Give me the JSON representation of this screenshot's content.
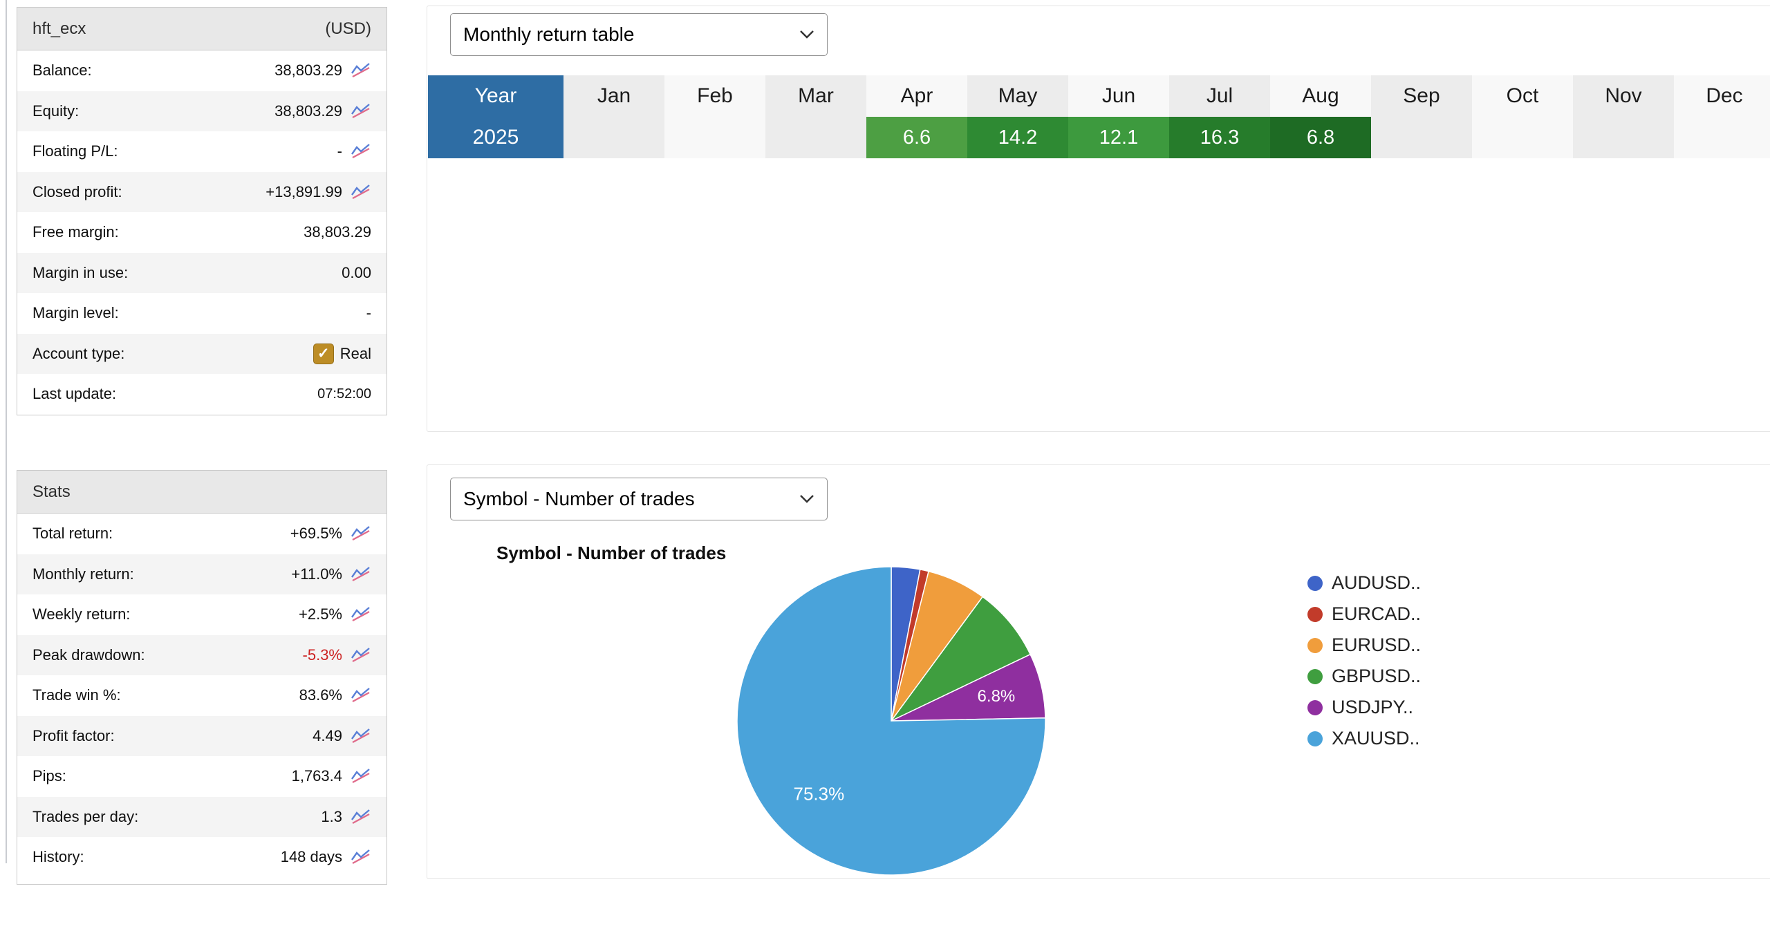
{
  "account_panel": {
    "title": "hft_ecx",
    "currency_label": "(USD)",
    "rows": [
      {
        "label": "Balance:",
        "value": "38,803.29",
        "icon": true
      },
      {
        "label": "Equity:",
        "value": "38,803.29",
        "icon": true
      },
      {
        "label": "Floating P/L:",
        "value": "-",
        "icon": true
      },
      {
        "label": "Closed profit:",
        "value": "+13,891.99",
        "icon": true
      },
      {
        "label": "Free margin:",
        "value": "38,803.29",
        "icon": false
      },
      {
        "label": "Margin in use:",
        "value": "0.00",
        "icon": false
      },
      {
        "label": "Margin level:",
        "value": "-",
        "icon": false
      },
      {
        "label": "Account type:",
        "value": "Real",
        "icon": false,
        "checkbox": true
      },
      {
        "label": "Last update:",
        "value": "07:52:00",
        "icon": false,
        "small": true
      }
    ]
  },
  "stats_panel": {
    "title": "Stats",
    "rows": [
      {
        "label": "Total return:",
        "value": "+69.5%",
        "icon": true
      },
      {
        "label": "Monthly return:",
        "value": "+11.0%",
        "icon": true
      },
      {
        "label": "Weekly return:",
        "value": "+2.5%",
        "icon": true
      },
      {
        "label": "Peak drawdown:",
        "value": "-5.3%",
        "icon": true,
        "color": "#cc2222"
      },
      {
        "label": "Trade win %:",
        "value": "83.6%",
        "icon": true
      },
      {
        "label": "Profit factor:",
        "value": "4.49",
        "icon": true
      },
      {
        "label": "Pips:",
        "value": "1,763.4",
        "icon": true
      },
      {
        "label": "Trades per day:",
        "value": "1.3",
        "icon": true
      },
      {
        "label": "History:",
        "value": "148 days",
        "icon": true
      }
    ]
  },
  "monthly_section": {
    "dropdown_value": "Monthly return table"
  },
  "symbol_section": {
    "dropdown_value": "Symbol - Number of trades",
    "chart_title": "Symbol - Number of trades"
  },
  "colors": {
    "table_header_blue": "#2e6da4",
    "drawdown_red": "#cc2222",
    "checkbox_gold": "#bd8d26"
  },
  "chart_data": [
    {
      "type": "table",
      "title": "Monthly return table",
      "columns": [
        "Year",
        "Jan",
        "Feb",
        "Mar",
        "Apr",
        "May",
        "Jun",
        "Jul",
        "Aug",
        "Sep",
        "Oct",
        "Nov",
        "Dec"
      ],
      "rows": [
        {
          "year": "2025",
          "values": [
            null,
            null,
            null,
            6.6,
            14.2,
            12.1,
            16.3,
            6.8,
            null,
            null,
            null,
            null
          ],
          "cell_colors": [
            null,
            null,
            null,
            "#4d9f43",
            "#2e8a33",
            "#3d9a3e",
            "#267c2b",
            "#1e6b24",
            null,
            null,
            null,
            null
          ]
        }
      ]
    },
    {
      "type": "pie",
      "title": "Symbol - Number of trades",
      "legend_position": "right",
      "slices": [
        {
          "label": "AUDUSD..",
          "value": 3.0,
          "color": "#3e64c8",
          "pct_label": null
        },
        {
          "label": "EURCAD..",
          "value": 0.9,
          "color": "#c23b2a",
          "pct_label": null
        },
        {
          "label": "EURUSD..",
          "value": 6.2,
          "color": "#f09d3c",
          "pct_label": null
        },
        {
          "label": "GBPUSD..",
          "value": 7.8,
          "color": "#3f9e3f",
          "pct_label": null
        },
        {
          "label": "USDJPY..",
          "value": 6.8,
          "color": "#8f2f9f",
          "pct_label": "6.8%"
        },
        {
          "label": "XAUUSD..",
          "value": 75.3,
          "color": "#4aa3da",
          "pct_label": "75.3%"
        }
      ]
    }
  ]
}
